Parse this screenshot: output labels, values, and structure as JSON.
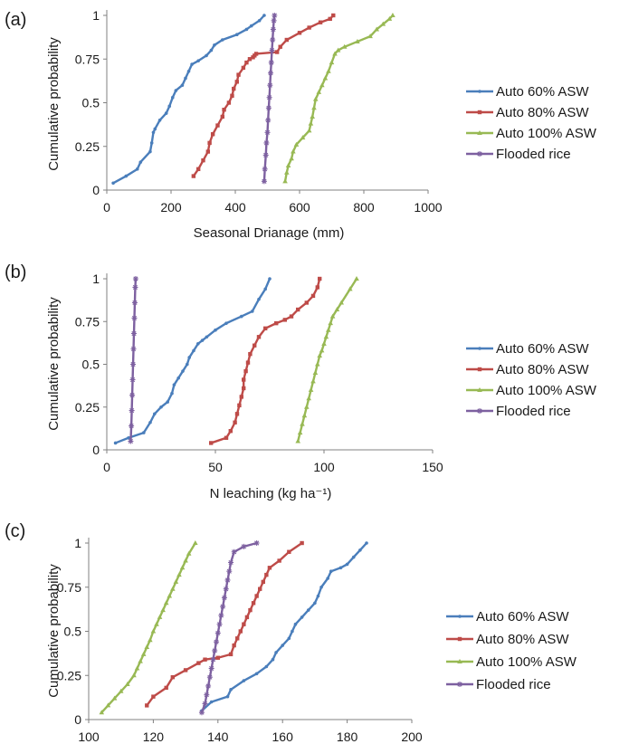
{
  "figure": {
    "panel_labels": [
      "(a)",
      "(b)",
      "(c)"
    ]
  },
  "chart_data": [
    {
      "panel": "(a)",
      "type": "line",
      "xlabel": "Seasonal Drianage (mm)",
      "ylabel": "Cumulative probability",
      "xlim": [
        0,
        1000
      ],
      "ylim": [
        0,
        1
      ],
      "xticks": [
        "0",
        "200",
        "400",
        "600",
        "800",
        "1000"
      ],
      "yticks": [
        "0",
        "0.25",
        "0.5",
        "0.75",
        "1"
      ],
      "legend": "right",
      "series": [
        {
          "name": "Auto 60% ASW",
          "color": "#4a7ebb",
          "marker": "dot",
          "x": [
            20,
            60,
            95,
            105,
            135,
            140,
            145,
            150,
            165,
            185,
            195,
            205,
            215,
            235,
            245,
            255,
            265,
            285,
            310,
            325,
            335,
            360,
            405,
            435,
            450,
            475,
            490
          ],
          "y": [
            0.04,
            0.08,
            0.12,
            0.16,
            0.22,
            0.27,
            0.33,
            0.35,
            0.4,
            0.44,
            0.48,
            0.53,
            0.57,
            0.6,
            0.64,
            0.68,
            0.72,
            0.74,
            0.77,
            0.8,
            0.83,
            0.86,
            0.89,
            0.92,
            0.94,
            0.97,
            1.0
          ]
        },
        {
          "name": "Auto 80% ASW",
          "color": "#be4b48",
          "marker": "square",
          "x": [
            270,
            285,
            300,
            315,
            320,
            330,
            345,
            360,
            365,
            380,
            390,
            395,
            405,
            410,
            425,
            435,
            445,
            455,
            460,
            465,
            530,
            540,
            560,
            600,
            630,
            665,
            695,
            705
          ],
          "y": [
            0.08,
            0.12,
            0.17,
            0.22,
            0.27,
            0.32,
            0.37,
            0.42,
            0.46,
            0.5,
            0.54,
            0.58,
            0.62,
            0.66,
            0.7,
            0.73,
            0.75,
            0.76,
            0.77,
            0.78,
            0.79,
            0.82,
            0.86,
            0.9,
            0.93,
            0.96,
            0.98,
            1.0
          ]
        },
        {
          "name": "Auto 100% ASW",
          "color": "#98b954",
          "marker": "triangle",
          "x": [
            555,
            560,
            565,
            575,
            580,
            590,
            610,
            630,
            635,
            640,
            645,
            650,
            660,
            670,
            680,
            690,
            700,
            710,
            720,
            740,
            780,
            820,
            840,
            860,
            880,
            890
          ],
          "y": [
            0.05,
            0.1,
            0.14,
            0.18,
            0.22,
            0.26,
            0.3,
            0.34,
            0.38,
            0.42,
            0.47,
            0.52,
            0.56,
            0.6,
            0.64,
            0.68,
            0.73,
            0.78,
            0.8,
            0.82,
            0.85,
            0.88,
            0.92,
            0.95,
            0.98,
            1.0
          ]
        },
        {
          "name": "Flooded rice",
          "color": "#7d60a0",
          "marker": "star",
          "x": [
            490,
            492,
            495,
            497,
            500,
            502,
            504,
            506,
            508,
            510,
            512,
            514,
            516,
            518,
            520,
            522
          ],
          "y": [
            0.05,
            0.12,
            0.2,
            0.27,
            0.33,
            0.4,
            0.47,
            0.53,
            0.6,
            0.67,
            0.73,
            0.8,
            0.86,
            0.92,
            0.97,
            1.0
          ]
        }
      ]
    },
    {
      "panel": "(b)",
      "type": "line",
      "xlabel": "N leaching (kg ha⁻¹)",
      "ylabel": "Cumulative probability",
      "xlim": [
        0,
        150
      ],
      "ylim": [
        0,
        1
      ],
      "xticks": [
        "0",
        "50",
        "100",
        "150"
      ],
      "yticks": [
        "0",
        "0.25",
        "0.5",
        "0.75",
        "1"
      ],
      "legend": "right",
      "series": [
        {
          "name": "Auto 60% ASW",
          "color": "#4a7ebb",
          "marker": "dot",
          "x": [
            4,
            10,
            17,
            20,
            22,
            25,
            28,
            30,
            31,
            33,
            35,
            37,
            38,
            40,
            42,
            44,
            46,
            50,
            55,
            62,
            67,
            70,
            73,
            75
          ],
          "y": [
            0.04,
            0.07,
            0.1,
            0.16,
            0.21,
            0.25,
            0.28,
            0.33,
            0.38,
            0.42,
            0.46,
            0.5,
            0.54,
            0.58,
            0.62,
            0.64,
            0.66,
            0.7,
            0.74,
            0.78,
            0.81,
            0.88,
            0.94,
            1.0
          ]
        },
        {
          "name": "Auto 80% ASW",
          "color": "#be4b48",
          "marker": "square",
          "x": [
            48,
            55,
            57,
            59,
            60,
            61,
            62,
            63,
            63,
            64,
            65,
            66,
            68,
            70,
            73,
            78,
            82,
            85,
            88,
            92,
            95,
            97,
            98
          ],
          "y": [
            0.04,
            0.07,
            0.11,
            0.16,
            0.21,
            0.26,
            0.31,
            0.36,
            0.41,
            0.46,
            0.51,
            0.56,
            0.61,
            0.66,
            0.71,
            0.74,
            0.76,
            0.78,
            0.82,
            0.86,
            0.9,
            0.95,
            1.0
          ]
        },
        {
          "name": "Auto 100% ASW",
          "color": "#98b954",
          "marker": "triangle",
          "x": [
            88,
            89,
            90,
            91,
            92,
            93,
            94,
            95,
            96,
            97,
            98,
            99,
            100,
            101,
            102,
            103,
            104,
            106,
            108,
            112,
            115
          ],
          "y": [
            0.05,
            0.1,
            0.15,
            0.2,
            0.25,
            0.3,
            0.35,
            0.4,
            0.45,
            0.5,
            0.55,
            0.58,
            0.62,
            0.66,
            0.7,
            0.74,
            0.78,
            0.82,
            0.86,
            0.94,
            1.0
          ]
        },
        {
          "name": "Flooded rice",
          "color": "#7d60a0",
          "marker": "star",
          "x": [
            11,
            11.3,
            11.5,
            11.7,
            11.9,
            12.1,
            12.3,
            12.5,
            12.7,
            12.9,
            13.1,
            13.3
          ],
          "y": [
            0.05,
            0.14,
            0.23,
            0.32,
            0.41,
            0.5,
            0.59,
            0.68,
            0.77,
            0.86,
            0.95,
            1.0
          ]
        }
      ]
    },
    {
      "panel": "(c)",
      "type": "line",
      "xlabel": "",
      "ylabel": "Cumulative probability",
      "xlim": [
        100,
        200
      ],
      "ylim": [
        0,
        1
      ],
      "xticks": [
        "100",
        "120",
        "140",
        "160",
        "180",
        "200"
      ],
      "yticks": [
        "0",
        "0.25",
        "0.5",
        "0.75",
        "1"
      ],
      "legend": "right",
      "series": [
        {
          "name": "Auto 60% ASW",
          "color": "#4a7ebb",
          "marker": "dot",
          "x": [
            135,
            138,
            143,
            144,
            148,
            152,
            155,
            157,
            158,
            160,
            162,
            163,
            164,
            166,
            168,
            170,
            171,
            172,
            174,
            175,
            178,
            180,
            182,
            184,
            186
          ],
          "y": [
            0.05,
            0.1,
            0.13,
            0.17,
            0.22,
            0.26,
            0.3,
            0.34,
            0.38,
            0.42,
            0.46,
            0.5,
            0.54,
            0.58,
            0.62,
            0.66,
            0.7,
            0.75,
            0.8,
            0.84,
            0.86,
            0.88,
            0.92,
            0.96,
            1.0
          ]
        },
        {
          "name": "Auto 80% ASW",
          "color": "#be4b48",
          "marker": "square",
          "x": [
            118,
            120,
            124,
            126,
            130,
            134,
            136,
            140,
            144,
            145,
            146,
            147,
            148,
            149,
            150,
            151,
            152,
            153,
            154,
            155,
            156,
            159,
            162,
            166
          ],
          "y": [
            0.08,
            0.13,
            0.18,
            0.24,
            0.28,
            0.32,
            0.34,
            0.35,
            0.37,
            0.42,
            0.46,
            0.5,
            0.54,
            0.58,
            0.62,
            0.66,
            0.7,
            0.74,
            0.78,
            0.82,
            0.86,
            0.9,
            0.95,
            1.0
          ]
        },
        {
          "name": "Auto 100% ASW",
          "color": "#98b954",
          "marker": "triangle",
          "x": [
            104,
            106,
            108,
            110,
            112,
            114,
            115,
            116,
            117,
            118,
            119,
            120,
            121,
            122,
            123,
            124,
            125,
            126,
            127,
            128,
            129,
            130,
            131,
            133
          ],
          "y": [
            0.04,
            0.08,
            0.12,
            0.16,
            0.2,
            0.25,
            0.29,
            0.33,
            0.37,
            0.41,
            0.45,
            0.5,
            0.54,
            0.58,
            0.62,
            0.66,
            0.7,
            0.74,
            0.78,
            0.82,
            0.86,
            0.9,
            0.94,
            1.0
          ]
        },
        {
          "name": "Flooded rice",
          "color": "#7d60a0",
          "marker": "star",
          "x": [
            135,
            136,
            136.5,
            137,
            137.5,
            138,
            138.5,
            139,
            139.5,
            140,
            140.5,
            141,
            141.5,
            142,
            142.5,
            143,
            143.5,
            144,
            145,
            148,
            152
          ],
          "y": [
            0.04,
            0.09,
            0.14,
            0.19,
            0.24,
            0.29,
            0.34,
            0.39,
            0.44,
            0.49,
            0.54,
            0.59,
            0.64,
            0.69,
            0.74,
            0.79,
            0.84,
            0.89,
            0.95,
            0.98,
            1.0
          ]
        }
      ]
    }
  ]
}
